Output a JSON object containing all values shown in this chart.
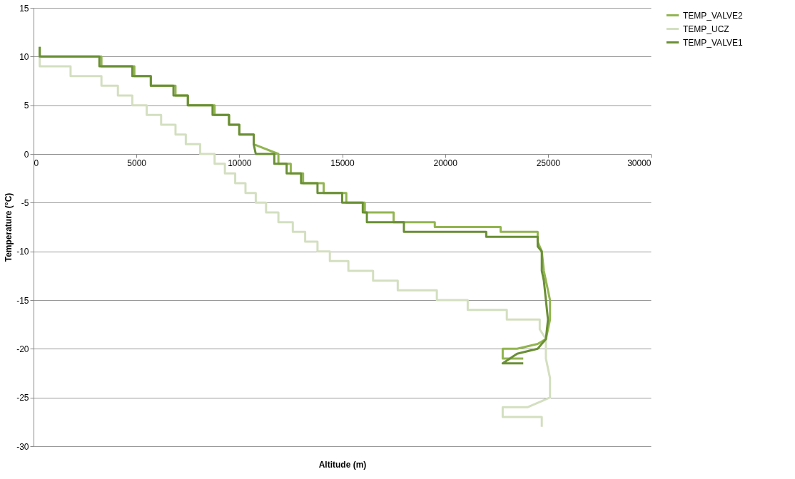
{
  "chart_data": {
    "type": "line",
    "xlabel": "Altitude (m)",
    "ylabel": "Temperature (°C)",
    "xlim": [
      0,
      30000
    ],
    "xticks": [
      0,
      5000,
      10000,
      15000,
      20000,
      25000,
      30000
    ],
    "ylim": [
      -30,
      15
    ],
    "yticks": [
      -30,
      -25,
      -20,
      -15,
      -10,
      -5,
      0,
      5,
      10,
      15
    ],
    "grid": "y",
    "legend": "right",
    "marker": "none",
    "line_style": "solid",
    "series": [
      {
        "name": "TEMP_VALVE2",
        "color": "#92b550",
        "x": [
          300,
          300,
          3300,
          3300,
          4900,
          4900,
          5700,
          5700,
          6900,
          6900,
          7500,
          7500,
          8800,
          8800,
          9500,
          9500,
          10000,
          10000,
          10700,
          10700,
          11900,
          11900,
          12500,
          12500,
          13100,
          13100,
          14100,
          14100,
          15200,
          15200,
          16100,
          16100,
          17500,
          17500,
          19500,
          19500,
          22700,
          22700,
          24500,
          24500,
          24700,
          24800,
          25000,
          25100,
          25100,
          24900,
          24500,
          23500,
          22800,
          22800,
          23800
        ],
        "values": [
          11,
          10,
          10,
          9,
          9,
          8,
          8,
          7,
          7,
          6,
          6,
          5,
          5,
          4,
          4,
          3,
          3,
          2,
          2,
          1,
          0,
          -1,
          -1,
          -2,
          -2,
          -3,
          -3,
          -4,
          -4,
          -5,
          -5,
          -6,
          -6,
          -7,
          -7,
          -7.5,
          -7.5,
          -8,
          -8,
          -9,
          -10,
          -12,
          -14,
          -15,
          -17,
          -19,
          -19.5,
          -20,
          -20,
          -21,
          -21
        ]
      },
      {
        "name": "TEMP_UCZ",
        "color": "#d3dfc0",
        "x": [
          300,
          300,
          1800,
          1800,
          3300,
          3300,
          4100,
          4100,
          4800,
          4800,
          5500,
          5500,
          6200,
          6200,
          6900,
          6900,
          7400,
          7400,
          8100,
          8100,
          8800,
          8800,
          9300,
          9300,
          9800,
          9800,
          10300,
          10300,
          10800,
          10800,
          11300,
          11300,
          11900,
          11900,
          12600,
          12600,
          13200,
          13200,
          13800,
          13800,
          14400,
          14400,
          15300,
          15300,
          16500,
          16500,
          17700,
          17700,
          19600,
          19600,
          21100,
          21100,
          23000,
          23000,
          24600,
          24600,
          24900,
          24900,
          25100,
          25100,
          24000,
          22800,
          22800,
          24700,
          24700
        ],
        "values": [
          10,
          9,
          9,
          8,
          8,
          7,
          7,
          6,
          6,
          5,
          5,
          4,
          4,
          3,
          3,
          2,
          2,
          1,
          1,
          0,
          0,
          -1,
          -1,
          -2,
          -2,
          -3,
          -3,
          -4,
          -4,
          -5,
          -5,
          -6,
          -6,
          -7,
          -7,
          -8,
          -8,
          -9,
          -9,
          -10,
          -10,
          -11,
          -11,
          -12,
          -12,
          -13,
          -13,
          -14,
          -14,
          -15,
          -15,
          -16,
          -16,
          -17,
          -17,
          -18,
          -19,
          -21,
          -23,
          -25,
          -26,
          -26,
          -27,
          -27,
          -28
        ]
      },
      {
        "name": "TEMP_VALVE1",
        "color": "#6a8f35",
        "x": [
          300,
          300,
          3200,
          3200,
          4800,
          4800,
          5700,
          5700,
          6800,
          6800,
          7500,
          7500,
          8700,
          8700,
          9500,
          9500,
          10000,
          10000,
          10700,
          10700,
          10800,
          11700,
          11700,
          12300,
          12300,
          13000,
          13000,
          13800,
          13800,
          15000,
          15000,
          16000,
          16000,
          16200,
          16200,
          18000,
          18000,
          22000,
          22000,
          24500,
          24500,
          24700,
          24700,
          24800,
          24900,
          25000,
          24900,
          24500,
          23500,
          22800,
          23800
        ],
        "values": [
          11,
          10,
          10,
          9,
          9,
          8,
          8,
          7,
          7,
          6,
          6,
          5,
          5,
          4,
          4,
          3,
          3,
          2,
          2,
          1,
          0,
          0,
          -1,
          -1,
          -2,
          -2,
          -3,
          -3,
          -4,
          -4,
          -5,
          -5,
          -6,
          -6,
          -7,
          -7,
          -8,
          -8,
          -8.5,
          -8.5,
          -9.5,
          -10,
          -12,
          -13,
          -15,
          -17,
          -19,
          -20,
          -20.5,
          -21.5,
          -21.5
        ]
      }
    ]
  }
}
